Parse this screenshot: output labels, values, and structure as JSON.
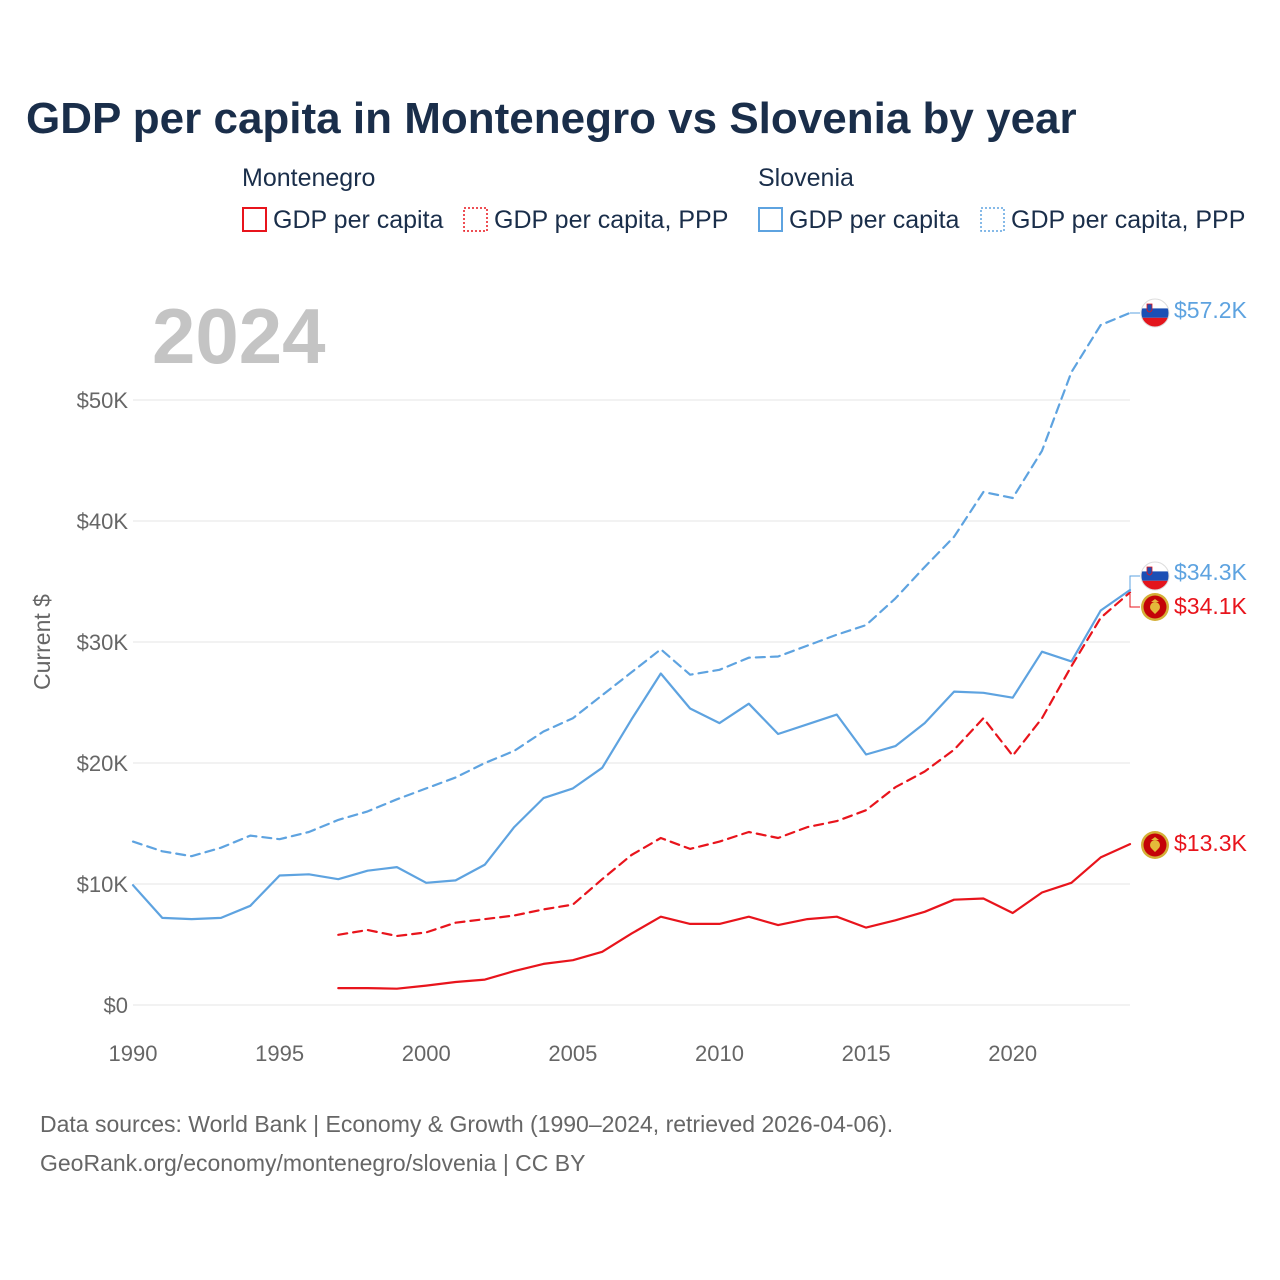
{
  "chart_data": {
    "type": "line",
    "title": "GDP per capita in Montenegro vs Slovenia by year",
    "ylabel": "Current $",
    "xlabel": "",
    "year_watermark": "2024",
    "xlim": [
      1990,
      2024
    ],
    "ylim": [
      0,
      57500
    ],
    "x_ticks": [
      {
        "value": 1990,
        "label": "1990"
      },
      {
        "value": 1995,
        "label": "1995"
      },
      {
        "value": 2000,
        "label": "2000"
      },
      {
        "value": 2005,
        "label": "2005"
      },
      {
        "value": 2010,
        "label": "2010"
      },
      {
        "value": 2015,
        "label": "2015"
      },
      {
        "value": 2020,
        "label": "2020"
      }
    ],
    "y_ticks": [
      {
        "value": 0,
        "label": "$0"
      },
      {
        "value": 10000,
        "label": "$10K"
      },
      {
        "value": 20000,
        "label": "$20K"
      },
      {
        "value": 30000,
        "label": "$30K"
      },
      {
        "value": 40000,
        "label": "$40K"
      },
      {
        "value": 50000,
        "label": "$50K"
      }
    ],
    "legend": {
      "groups": [
        {
          "name": "Montenegro",
          "items": [
            "GDP per capita",
            "GDP per capita, PPP"
          ]
        },
        {
          "name": "Slovenia",
          "items": [
            "GDP per capita",
            "GDP per capita, PPP"
          ]
        }
      ]
    },
    "series": [
      {
        "name": "Montenegro GDP per capita",
        "country": "Montenegro",
        "color": "#e8141c",
        "style": "solid",
        "end_label": "$13.3K",
        "x": [
          1997,
          1998,
          1999,
          2000,
          2001,
          2002,
          2003,
          2004,
          2005,
          2006,
          2007,
          2008,
          2009,
          2010,
          2011,
          2012,
          2013,
          2014,
          2015,
          2016,
          2017,
          2018,
          2019,
          2020,
          2021,
          2022,
          2023,
          2024
        ],
        "values": [
          1400,
          1400,
          1350,
          1600,
          1900,
          2100,
          2800,
          3400,
          3700,
          4400,
          5900,
          7300,
          6700,
          6700,
          7300,
          6600,
          7100,
          7300,
          6400,
          7000,
          7700,
          8700,
          8800,
          7600,
          9300,
          10100,
          12200,
          13300
        ]
      },
      {
        "name": "Montenegro GDP per capita, PPP",
        "country": "Montenegro",
        "color": "#e8141c",
        "style": "dashed",
        "end_label": "$34.1K",
        "x": [
          1997,
          1998,
          1999,
          2000,
          2001,
          2002,
          2003,
          2004,
          2005,
          2006,
          2007,
          2008,
          2009,
          2010,
          2011,
          2012,
          2013,
          2014,
          2015,
          2016,
          2017,
          2018,
          2019,
          2020,
          2021,
          2022,
          2023,
          2024
        ],
        "values": [
          5800,
          6200,
          5700,
          6000,
          6800,
          7100,
          7400,
          7900,
          8300,
          10400,
          12400,
          13800,
          12900,
          13500,
          14300,
          13800,
          14700,
          15200,
          16100,
          18000,
          19300,
          21100,
          23700,
          20600,
          23700,
          28000,
          32000,
          34100
        ]
      },
      {
        "name": "Slovenia GDP per capita",
        "country": "Slovenia",
        "color": "#5ea3e0",
        "style": "solid",
        "end_label": "$34.3K",
        "x": [
          1990,
          1991,
          1992,
          1993,
          1994,
          1995,
          1996,
          1997,
          1998,
          1999,
          2000,
          2001,
          2002,
          2003,
          2004,
          2005,
          2006,
          2007,
          2008,
          2009,
          2010,
          2011,
          2012,
          2013,
          2014,
          2015,
          2016,
          2017,
          2018,
          2019,
          2020,
          2021,
          2022,
          2023,
          2024
        ],
        "values": [
          9900,
          7200,
          7100,
          7200,
          8200,
          10700,
          10800,
          10400,
          11100,
          11400,
          10100,
          10300,
          11600,
          14700,
          17100,
          17900,
          19600,
          23600,
          27400,
          24500,
          23300,
          24900,
          22400,
          23200,
          24000,
          20700,
          21400,
          23300,
          25900,
          25800,
          25400,
          29200,
          28400,
          32600,
          34300
        ]
      },
      {
        "name": "Slovenia GDP per capita, PPP",
        "country": "Slovenia",
        "color": "#5ea3e0",
        "style": "dashed",
        "end_label": "$57.2K",
        "x": [
          1990,
          1991,
          1992,
          1993,
          1994,
          1995,
          1996,
          1997,
          1998,
          1999,
          2000,
          2001,
          2002,
          2003,
          2004,
          2005,
          2006,
          2007,
          2008,
          2009,
          2010,
          2011,
          2012,
          2013,
          2014,
          2015,
          2016,
          2017,
          2018,
          2019,
          2020,
          2021,
          2022,
          2023,
          2024
        ],
        "values": [
          13500,
          12700,
          12300,
          13000,
          14000,
          13700,
          14300,
          15300,
          16000,
          17000,
          17900,
          18800,
          20000,
          21000,
          22600,
          23700,
          25600,
          27500,
          29400,
          27300,
          27700,
          28700,
          28800,
          29700,
          30600,
          31400,
          33600,
          36200,
          38700,
          42400,
          41900,
          45800,
          52300,
          56200,
          57200
        ]
      }
    ],
    "source_lines": [
      "Data sources: World Bank | Economy & Growth (1990–2024, retrieved 2026-04-06).",
      "GeoRank.org/economy/montenegro/slovenia | CC BY"
    ]
  }
}
